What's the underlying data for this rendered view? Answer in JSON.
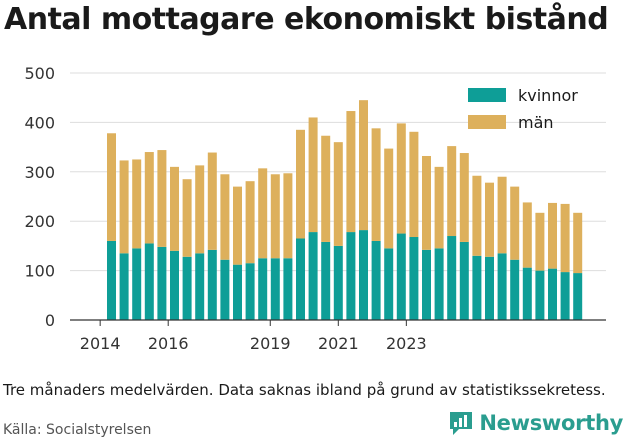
{
  "chart_data": {
    "type": "bar",
    "stacked": true,
    "title": "Antal mottagare ekonomiskt bistånd",
    "xlabel": "",
    "ylabel": "",
    "ylim": [
      0,
      500
    ],
    "y_ticks": [
      0,
      100,
      200,
      300,
      400,
      500
    ],
    "x_ticks": [
      {
        "label": "2014",
        "index": -0.9
      },
      {
        "label": "2016",
        "index": 4.5
      },
      {
        "label": "2019",
        "index": 12.6
      },
      {
        "label": "2021",
        "index": 18.0
      },
      {
        "label": "2023",
        "index": 23.4
      }
    ],
    "grid": "horizontal",
    "legend_position": "top-right",
    "series": [
      {
        "name": "kvinnor",
        "color": "#0e9e97",
        "values": [
          160,
          135,
          145,
          155,
          148,
          140,
          128,
          135,
          142,
          122,
          112,
          115,
          125,
          125,
          125,
          165,
          178,
          158,
          150,
          178,
          182,
          160,
          145,
          175,
          168,
          142,
          145,
          170,
          158,
          130,
          128,
          135,
          122,
          106,
          100,
          104,
          97,
          95
        ]
      },
      {
        "name": "män",
        "color": "#ddb05c",
        "values": [
          218,
          188,
          180,
          185,
          196,
          170,
          157,
          178,
          197,
          173,
          158,
          166,
          182,
          170,
          172,
          220,
          232,
          215,
          210,
          245,
          263,
          228,
          202,
          223,
          213,
          190,
          165,
          182,
          180,
          162,
          150,
          155,
          148,
          132,
          117,
          133,
          138,
          122
        ]
      }
    ]
  },
  "note": "Tre månaders medelvärden. Data saknas ibland på grund av statistikssekretess.",
  "source": "Källa: Socialstyrelsen",
  "brand": {
    "name": "Newsworthy",
    "icon": "newsworthy-logo-icon",
    "color": "#2a9d8f"
  }
}
